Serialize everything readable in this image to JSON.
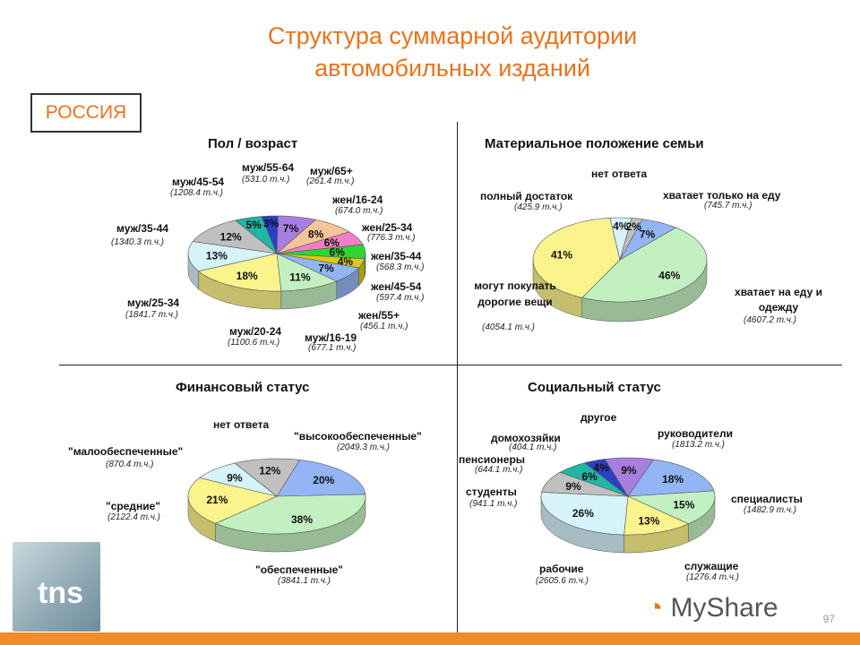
{
  "header": {
    "title_line1": "Структура суммарной аудитории",
    "title_line2": "автомобильных изданий",
    "region": "РОССИЯ"
  },
  "footer": {
    "page_number": "97",
    "brand_text": "MyShare",
    "logo_text": "tns"
  },
  "colors": {
    "title": "#e8731d",
    "bar": "#f28c28"
  },
  "chart_data": [
    {
      "type": "pie",
      "title": "Пол / возраст",
      "slices": [
        {
          "label": "муж/65+",
          "sub": "(261.4 т.ч.)",
          "value": 3,
          "pct": "3%",
          "color": "#2b3fc4"
        },
        {
          "label": "жен/16-24",
          "sub": "(674.0 т.ч.)",
          "value": 7,
          "pct": "7%",
          "color": "#a77fe0"
        },
        {
          "label": "жен/25-34",
          "sub": "(776.3 т.ч.)",
          "value": 8,
          "pct": "8%",
          "color": "#f5c69a"
        },
        {
          "label": "жен/35-44",
          "sub": "(568.3 т.ч.)",
          "value": 6,
          "pct": "6%",
          "color": "#f07fc4"
        },
        {
          "label": "жен/45-54",
          "sub": "(597.4 т.ч.)",
          "value": 6,
          "pct": "6%",
          "color": "#2fd431"
        },
        {
          "label": "жен/55+",
          "sub": "(456.1 т.ч.)",
          "value": 4,
          "pct": "4%",
          "color": "#d9ca17"
        },
        {
          "label": "муж/16-19",
          "sub": "(677.1 т.ч.)",
          "value": 7,
          "pct": "7%",
          "color": "#93b5f5"
        },
        {
          "label": "муж/20-24",
          "sub": "(1100.6 т.ч.)",
          "value": 11,
          "pct": "11%",
          "color": "#c3f0c0"
        },
        {
          "label": "муж/25-34",
          "sub": "(1841.7 т.ч.)",
          "value": 18,
          "pct": "18%",
          "color": "#fbf48c"
        },
        {
          "label": "муж/35-44",
          "sub": "(1340.3 т.ч.)",
          "value": 13,
          "pct": "13%",
          "color": "#d6f2fa"
        },
        {
          "label": "муж/45-54",
          "sub": "(1208.4 т.ч.)",
          "value": 12,
          "pct": "12%",
          "color": "#c0c0c0"
        },
        {
          "label": "муж/55-64",
          "sub": "(531.0 т.ч.)",
          "value": 5,
          "pct": "5%",
          "color": "#1fb6a6"
        }
      ]
    },
    {
      "type": "pie",
      "title": "Материальное положение семьи",
      "slices": [
        {
          "label": "хватает только на еду",
          "sub": "(745.7 т.ч.)",
          "value": 7,
          "pct": "7%",
          "color": "#93b5f5"
        },
        {
          "label": "хватает на еду и одежду",
          "sub": "(4607.2 т.ч.)",
          "value": 46,
          "pct": "46%",
          "color": "#c3f0c0"
        },
        {
          "label": "могут покупать дорогие вещи",
          "sub": "(4054.1 т.ч.)",
          "value": 41,
          "pct": "41%",
          "color": "#fbf48c"
        },
        {
          "label": "полный достаток",
          "sub": "(425.9 т.ч.)",
          "value": 4,
          "pct": "4%",
          "color": "#d6f2fa"
        },
        {
          "label": "нет ответа",
          "sub": "",
          "value": 2,
          "pct": "2%",
          "color": "#c0c0c0"
        }
      ]
    },
    {
      "type": "pie",
      "title": "Финансовый статус",
      "slices": [
        {
          "label": "\"высокообеспеченные\"",
          "sub": "(2049.3 т.ч.)",
          "value": 20,
          "pct": "20%",
          "color": "#93b5f5"
        },
        {
          "label": "\"обеспеченные\"",
          "sub": "(3841.1 т.ч.)",
          "value": 38,
          "pct": "38%",
          "color": "#c3f0c0"
        },
        {
          "label": "\"средние\"",
          "sub": "(2122.4 т.ч.)",
          "value": 21,
          "pct": "21%",
          "color": "#fbf48c"
        },
        {
          "label": "\"малообеспеченные\"",
          "sub": "(870.4 т.ч.)",
          "value": 9,
          "pct": "9%",
          "color": "#d6f2fa"
        },
        {
          "label": "нет ответа",
          "sub": "",
          "value": 12,
          "pct": "12%",
          "color": "#c0c0c0"
        }
      ]
    },
    {
      "type": "pie",
      "title": "Социальный статус",
      "slices": [
        {
          "label": "руководители",
          "sub": "(1813.2 т.ч.)",
          "value": 18,
          "pct": "18%",
          "color": "#93b5f5"
        },
        {
          "label": "специалисты",
          "sub": "(1482.9 т.ч.)",
          "value": 15,
          "pct": "15%",
          "color": "#c3f0c0"
        },
        {
          "label": "служащие",
          "sub": "(1276.4 т.ч.)",
          "value": 13,
          "pct": "13%",
          "color": "#fbf48c"
        },
        {
          "label": "рабочие",
          "sub": "(2605.6 т.ч.)",
          "value": 26,
          "pct": "26%",
          "color": "#d6f2fa"
        },
        {
          "label": "студенты",
          "sub": "(941.1 т.ч.)",
          "value": 9,
          "pct": "9%",
          "color": "#c0c0c0"
        },
        {
          "label": "пенсионеры",
          "sub": "(644.1 т.ч.)",
          "value": 6,
          "pct": "6%",
          "color": "#1fb6a6"
        },
        {
          "label": "домохозяйки",
          "sub": "(404.1 т.ч.)",
          "value": 4,
          "pct": "4%",
          "color": "#2b3fc4"
        },
        {
          "label": "другое",
          "sub": "",
          "value": 9,
          "pct": "9%",
          "color": "#a77fe0"
        }
      ]
    }
  ]
}
